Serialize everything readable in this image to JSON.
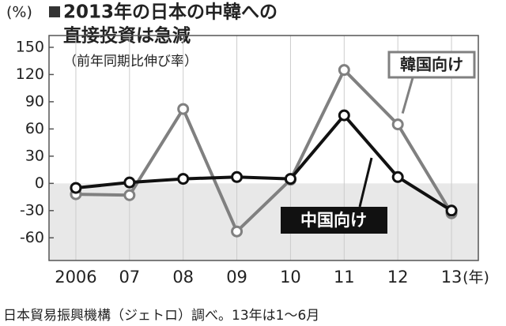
{
  "chart_data": {
    "type": "line",
    "title_lines": [
      "2013年の日本の中韓への",
      "直接投資は急減"
    ],
    "subtitle": "（前年同期比伸び率）",
    "y_unit": "(%)",
    "x_unit": "(年)",
    "source": "日本貿易振興機構（ジェトロ）調べ。13年は1～6月",
    "categories": [
      "2006",
      "07",
      "08",
      "09",
      "10",
      "11",
      "12",
      "13"
    ],
    "series": [
      {
        "name": "韓国向け",
        "color": "#808080",
        "values": [
          -12,
          -13,
          82,
          -53,
          4,
          125,
          65,
          -33
        ]
      },
      {
        "name": "中国向け",
        "color": "#111111",
        "values": [
          -5,
          1,
          5,
          7,
          5,
          75,
          7,
          -30
        ]
      }
    ],
    "ylim": [
      -85,
      163
    ],
    "yticks": [
      -60,
      -30,
      0,
      30,
      60,
      90,
      120,
      150
    ],
    "grid": true
  }
}
